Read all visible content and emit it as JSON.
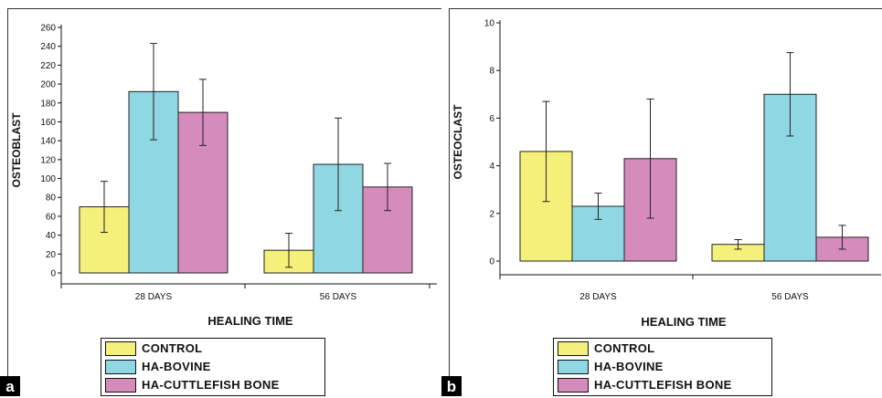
{
  "colors": {
    "CONTROL": "#f5f07a",
    "HA-BOVINE": "#8fd7e3",
    "HA-CUTTLEFISH BONE": "#d68bbd"
  },
  "chart_data": [
    {
      "type": "bar",
      "panel": "a",
      "title": "",
      "xlabel": "HEALING TIME",
      "ylabel": "OSTEOBLAST",
      "categories": [
        "28 DAYS",
        "56 DAYS"
      ],
      "ylim": [
        0,
        260
      ],
      "yticks": [
        0,
        20,
        40,
        60,
        80,
        100,
        120,
        140,
        160,
        180,
        200,
        220,
        240,
        260
      ],
      "series": [
        {
          "name": "CONTROL",
          "values": [
            70,
            24
          ],
          "errors": [
            27,
            18
          ]
        },
        {
          "name": "HA-BOVINE",
          "values": [
            192,
            115
          ],
          "errors": [
            51,
            49
          ]
        },
        {
          "name": "HA-CUTTLEFISH BONE",
          "values": [
            170,
            91
          ],
          "errors": [
            35,
            25
          ]
        }
      ],
      "legend": [
        "CONTROL",
        "HA-BOVINE",
        "HA-CUTTLEFISH BONE"
      ],
      "legend_position": "bottom-left"
    },
    {
      "type": "bar",
      "panel": "b",
      "title": "",
      "xlabel": "HEALING TIME",
      "ylabel": "OSTEOCLAST",
      "categories": [
        "28 DAYS",
        "56 DAYS"
      ],
      "ylim": [
        0,
        10
      ],
      "yticks": [
        0,
        2,
        4,
        6,
        8,
        10
      ],
      "series": [
        {
          "name": "CONTROL",
          "values": [
            4.6,
            0.7
          ],
          "errors": [
            2.1,
            0.2
          ]
        },
        {
          "name": "HA-BOVINE",
          "values": [
            2.3,
            7.0
          ],
          "errors": [
            0.55,
            1.75
          ]
        },
        {
          "name": "HA-CUTTLEFISH BONE",
          "values": [
            4.3,
            1.0
          ],
          "errors": [
            2.5,
            0.5
          ]
        }
      ],
      "legend": [
        "CONTROL",
        "HA-BOVINE",
        "HA-CUTTLEFISH BONE"
      ],
      "legend_position": "bottom-left"
    }
  ],
  "panels": {
    "a": {
      "letter": "a"
    },
    "b": {
      "letter": "b"
    }
  }
}
